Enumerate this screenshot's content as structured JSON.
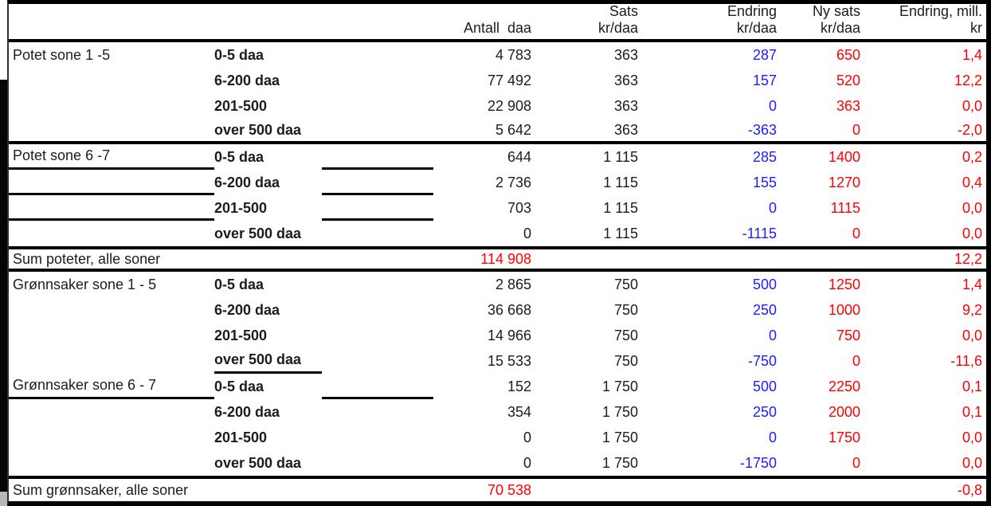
{
  "table": {
    "header": {
      "antall_l2": "Antall  daa",
      "sats_l1": "Sats",
      "sats_l2": "kr/daa",
      "endring_l1": "Endring",
      "endring_l2": "kr/daa",
      "ny_l1": "Ny sats",
      "ny_l2": "kr/daa",
      "mill_l1": "Endring, mill.",
      "mill_l2": "kr"
    },
    "rows": [
      {
        "type": "data",
        "group": "Potet sone 1 -5",
        "size": "0-5 daa",
        "antall": "4 783",
        "sats": "363",
        "endring": "287",
        "ny_sats": "650",
        "endring_mill": "1,4"
      },
      {
        "type": "data",
        "group": "",
        "size": "6-200 daa",
        "antall": "77 492",
        "sats": "363",
        "endring": "157",
        "ny_sats": "520",
        "endring_mill": "12,2"
      },
      {
        "type": "data",
        "group": "",
        "size": "201-500",
        "antall": "22 908",
        "sats": "363",
        "endring": "0",
        "ny_sats": "363",
        "endring_mill": "0,0"
      },
      {
        "type": "data",
        "group": "",
        "size": "over 500 daa",
        "antall": "5 642",
        "sats": "363",
        "endring": "-363",
        "ny_sats": "0",
        "endring_mill": "-2,0",
        "sep_bottom": true
      },
      {
        "type": "data",
        "group": "Potet sone 6 -7",
        "size": "0-5 daa",
        "antall": "644",
        "sats": "1 115",
        "endring": "285",
        "ny_sats": "1400",
        "endring_mill": "0,2",
        "ul": [
          "group",
          "spacer"
        ]
      },
      {
        "type": "data",
        "group": "",
        "size": "6-200 daa",
        "antall": "2 736",
        "sats": "1 115",
        "endring": "155",
        "ny_sats": "1270",
        "endring_mill": "0,4",
        "ul": [
          "group",
          "spacer"
        ]
      },
      {
        "type": "data",
        "group": "",
        "size": "201-500",
        "antall": "703",
        "sats": "1 115",
        "endring": "0",
        "ny_sats": "1115",
        "endring_mill": "0,0",
        "ul": [
          "group",
          "spacer"
        ]
      },
      {
        "type": "data",
        "group": "",
        "size": "over 500 daa",
        "antall": "0",
        "sats": "1 115",
        "endring": "-1115",
        "ny_sats": "0",
        "endring_mill": "0,0"
      },
      {
        "type": "sum",
        "label": "Sum poteter, alle soner",
        "antall": "114 908",
        "endring_mill": "12,2"
      },
      {
        "type": "data",
        "group": "Grønnsaker sone 1 - 5",
        "size": "0-5 daa",
        "antall": "2 865",
        "sats": "750",
        "endring": "500",
        "ny_sats": "1250",
        "endring_mill": "1,4"
      },
      {
        "type": "data",
        "group": "",
        "size": "6-200 daa",
        "antall": "36 668",
        "sats": "750",
        "endring": "250",
        "ny_sats": "1000",
        "endring_mill": "9,2"
      },
      {
        "type": "data",
        "group": "",
        "size": "201-500",
        "antall": "14 966",
        "sats": "750",
        "endring": "0",
        "ny_sats": "750",
        "endring_mill": "0,0"
      },
      {
        "type": "data",
        "group": "",
        "size": "over 500 daa",
        "antall": "15 533",
        "sats": "750",
        "endring": "-750",
        "ny_sats": "0",
        "endring_mill": "-11,6",
        "ul": [
          "size"
        ]
      },
      {
        "type": "data",
        "group": "Grønnsaker sone 6 - 7",
        "size": "0-5 daa",
        "antall": "152",
        "sats": "1 750",
        "endring": "500",
        "ny_sats": "2250",
        "endring_mill": "0,1",
        "ul": [
          "group",
          "spacer"
        ]
      },
      {
        "type": "data",
        "group": "",
        "size": "6-200 daa",
        "antall": "354",
        "sats": "1 750",
        "endring": "250",
        "ny_sats": "2000",
        "endring_mill": "0,1"
      },
      {
        "type": "data",
        "group": "",
        "size": "201-500",
        "antall": "0",
        "sats": "1 750",
        "endring": "0",
        "ny_sats": "1750",
        "endring_mill": "0,0"
      },
      {
        "type": "data",
        "group": "",
        "size": "over 500 daa",
        "antall": "0",
        "sats": "1 750",
        "endring": "-1750",
        "ny_sats": "0",
        "endring_mill": "0,0"
      },
      {
        "type": "sum",
        "label": "Sum grønnsaker, alle soner",
        "antall": "70 538",
        "endring_mill": "-0,8",
        "last": true
      }
    ]
  },
  "colors": {
    "change_value": "#1d1dff",
    "new_rate_value": "#ff0000",
    "change_mill_value": "#ff0000",
    "sum_value": "#ff0000",
    "text": "#1c1c1c"
  }
}
